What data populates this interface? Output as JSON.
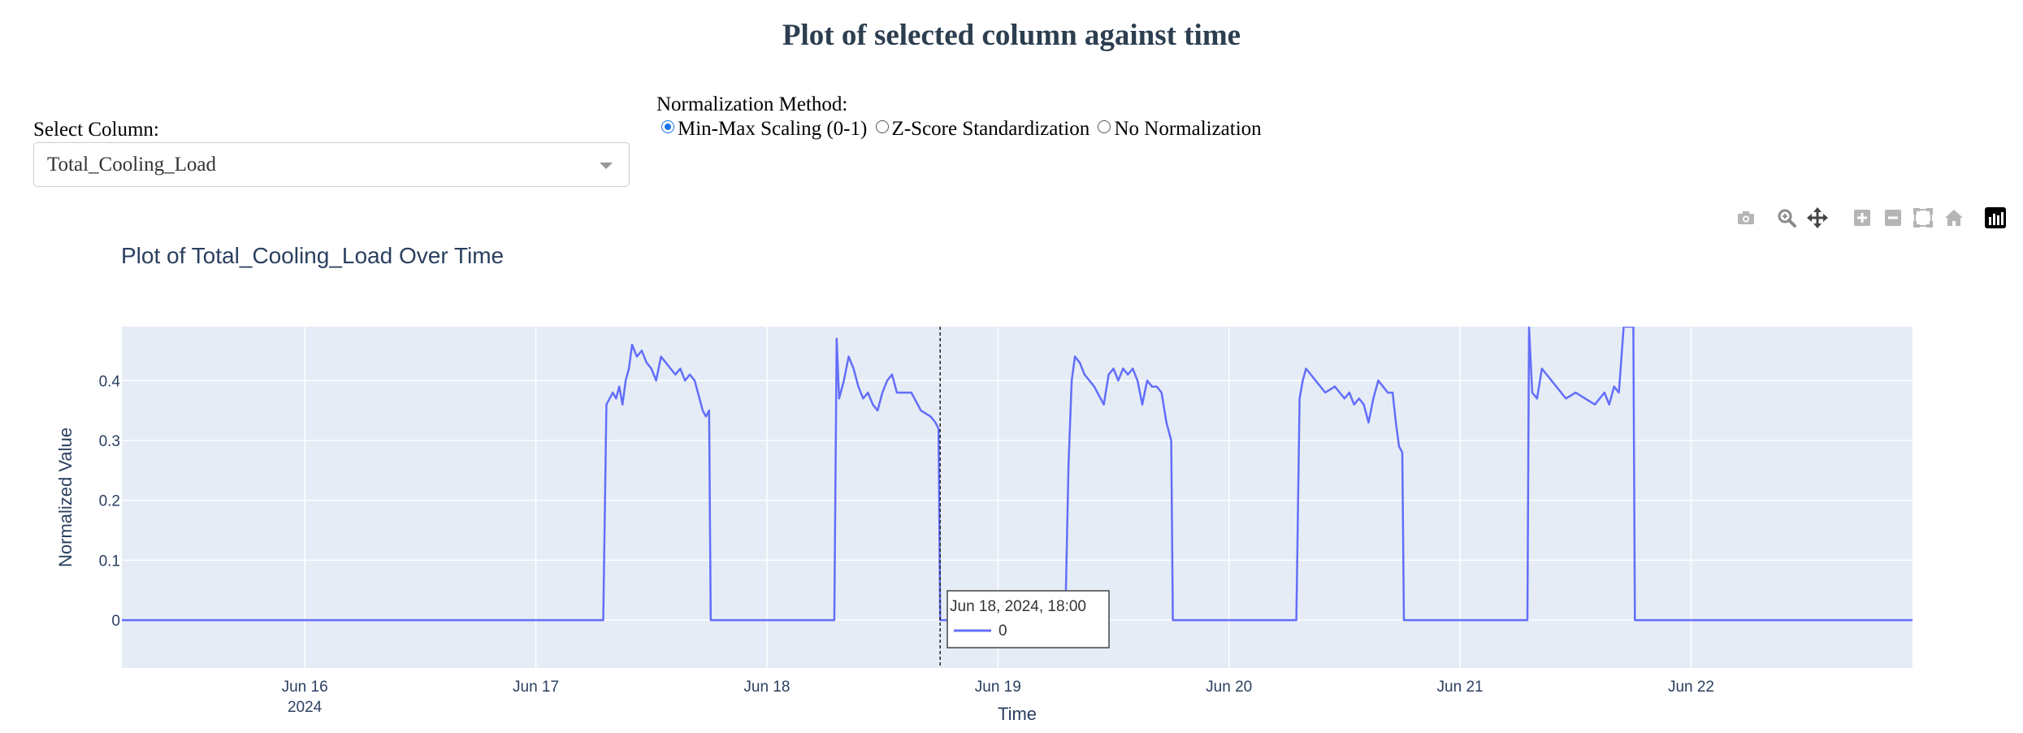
{
  "page_title": "Plot of selected column against time",
  "column_selector": {
    "label": "Select Column:",
    "value": "Total_Cooling_Load"
  },
  "normalization": {
    "label": "Normalization Method:",
    "options": [
      "Min-Max Scaling (0-1)",
      "Z-Score Standardization",
      "No Normalization"
    ],
    "selected": 0
  },
  "modebar": [
    "camera-icon",
    "zoom-icon",
    "pan-icon",
    "zoom-in-icon",
    "zoom-out-icon",
    "autoscale-icon",
    "reset-axes-icon",
    "plotly-logo-icon"
  ],
  "hover": {
    "title": "Jun 18, 2024, 18:00",
    "value": "0",
    "x": "2024-06-18 18:00"
  },
  "chart_data": {
    "type": "line",
    "title": "Plot of Total_Cooling_Load Over Time",
    "xlabel": "Time",
    "ylabel": "Normalized Value",
    "x_range": [
      "2024-06-15 05:00",
      "2024-06-22 23:00"
    ],
    "ylim": [
      -0.08,
      0.49
    ],
    "yticks": [
      0,
      0.1,
      0.2,
      0.3,
      0.4
    ],
    "ytick_labels": [
      "0",
      "0.1",
      "0.2",
      "0.3",
      "0.4"
    ],
    "xticks": [
      "2024-06-16",
      "2024-06-17",
      "2024-06-18",
      "2024-06-19",
      "2024-06-20",
      "2024-06-21",
      "2024-06-22"
    ],
    "xtick_labels": [
      "Jun 16",
      "Jun 17",
      "Jun 18",
      "Jun 19",
      "Jun 20",
      "Jun 21",
      "Jun 22"
    ],
    "xtick_year": "2024",
    "line_color": "#636efa",
    "plot_bg": "#e5ecf6",
    "series": [
      {
        "x": [
          "2024-06-15 05:00",
          "2024-06-17 07:00",
          "2024-06-17 07:20",
          "2024-06-17 07:40",
          "2024-06-17 08:00",
          "2024-06-17 08:20",
          "2024-06-17 08:40",
          "2024-06-17 09:00",
          "2024-06-17 09:20",
          "2024-06-17 09:40",
          "2024-06-17 10:00",
          "2024-06-17 10:30",
          "2024-06-17 11:00",
          "2024-06-17 11:30",
          "2024-06-17 12:00",
          "2024-06-17 12:30",
          "2024-06-17 13:00",
          "2024-06-17 13:30",
          "2024-06-17 14:00",
          "2024-06-17 14:30",
          "2024-06-17 15:00",
          "2024-06-17 15:30",
          "2024-06-17 16:00",
          "2024-06-17 16:30",
          "2024-06-17 17:00",
          "2024-06-17 17:20",
          "2024-06-17 17:40",
          "2024-06-17 18:00",
          "2024-06-17 18:10",
          "2024-06-18 07:00",
          "2024-06-18 07:15",
          "2024-06-18 07:30",
          "2024-06-18 08:00",
          "2024-06-18 08:30",
          "2024-06-18 09:00",
          "2024-06-18 09:30",
          "2024-06-18 10:00",
          "2024-06-18 10:30",
          "2024-06-18 11:00",
          "2024-06-18 11:30",
          "2024-06-18 12:00",
          "2024-06-18 12:30",
          "2024-06-18 13:00",
          "2024-06-18 13:30",
          "2024-06-18 14:00",
          "2024-06-18 15:00",
          "2024-06-18 16:00",
          "2024-06-18 17:00",
          "2024-06-18 17:30",
          "2024-06-18 17:50",
          "2024-06-18 18:00",
          "2024-06-19 07:00",
          "2024-06-19 07:20",
          "2024-06-19 07:40",
          "2024-06-19 08:00",
          "2024-06-19 08:30",
          "2024-06-19 09:00",
          "2024-06-19 10:00",
          "2024-06-19 11:00",
          "2024-06-19 11:30",
          "2024-06-19 12:00",
          "2024-06-19 12:30",
          "2024-06-19 13:00",
          "2024-06-19 13:30",
          "2024-06-19 14:00",
          "2024-06-19 14:30",
          "2024-06-19 15:00",
          "2024-06-19 15:30",
          "2024-06-19 16:00",
          "2024-06-19 16:30",
          "2024-06-19 17:00",
          "2024-06-19 17:30",
          "2024-06-19 18:00",
          "2024-06-19 18:10",
          "2024-06-20 07:00",
          "2024-06-20 07:20",
          "2024-06-20 07:40",
          "2024-06-20 08:00",
          "2024-06-20 08:30",
          "2024-06-20 09:00",
          "2024-06-20 10:00",
          "2024-06-20 11:00",
          "2024-06-20 12:00",
          "2024-06-20 12:30",
          "2024-06-20 13:00",
          "2024-06-20 13:30",
          "2024-06-20 14:00",
          "2024-06-20 14:30",
          "2024-06-20 15:00",
          "2024-06-20 15:30",
          "2024-06-20 16:00",
          "2024-06-20 16:30",
          "2024-06-20 17:00",
          "2024-06-20 17:20",
          "2024-06-20 17:40",
          "2024-06-20 18:00",
          "2024-06-20 18:10",
          "2024-06-21 07:00",
          "2024-06-21 07:10",
          "2024-06-21 07:30",
          "2024-06-21 08:00",
          "2024-06-21 08:30",
          "2024-06-21 09:00",
          "2024-06-21 10:00",
          "2024-06-21 11:00",
          "2024-06-21 12:00",
          "2024-06-21 13:00",
          "2024-06-21 14:00",
          "2024-06-21 15:00",
          "2024-06-21 15:30",
          "2024-06-21 16:00",
          "2024-06-21 16:30",
          "2024-06-21 17:00",
          "2024-06-21 17:30",
          "2024-06-21 18:00",
          "2024-06-21 18:10",
          "2024-06-22 23:00"
        ],
        "y": [
          0,
          0,
          0.36,
          0.37,
          0.38,
          0.37,
          0.39,
          0.36,
          0.4,
          0.42,
          0.46,
          0.44,
          0.45,
          0.43,
          0.42,
          0.4,
          0.44,
          0.43,
          0.42,
          0.41,
          0.42,
          0.4,
          0.41,
          0.4,
          0.37,
          0.35,
          0.34,
          0.35,
          0,
          0,
          0.47,
          0.37,
          0.4,
          0.44,
          0.42,
          0.39,
          0.37,
          0.38,
          0.36,
          0.35,
          0.38,
          0.4,
          0.41,
          0.38,
          0.38,
          0.38,
          0.35,
          0.34,
          0.33,
          0.32,
          0,
          0,
          0.26,
          0.4,
          0.44,
          0.43,
          0.41,
          0.39,
          0.36,
          0.41,
          0.42,
          0.4,
          0.42,
          0.41,
          0.42,
          0.4,
          0.36,
          0.4,
          0.39,
          0.39,
          0.38,
          0.33,
          0.3,
          0,
          0,
          0.37,
          0.4,
          0.42,
          0.41,
          0.4,
          0.38,
          0.39,
          0.37,
          0.38,
          0.36,
          0.37,
          0.36,
          0.33,
          0.37,
          0.4,
          0.39,
          0.38,
          0.38,
          0.33,
          0.29,
          0.28,
          0,
          0,
          0.49,
          0.38,
          0.37,
          0.42,
          0.41,
          0.39,
          0.37,
          0.38,
          0.37,
          0.36,
          0.38,
          0.36,
          0.39,
          0.38,
          0.49,
          0.49,
          0.49,
          0,
          0
        ]
      }
    ]
  }
}
